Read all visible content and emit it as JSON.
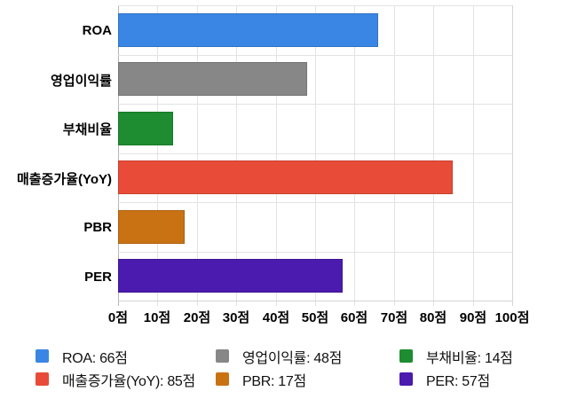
{
  "chart_data": {
    "type": "bar",
    "orientation": "horizontal",
    "title": "",
    "xlabel": "",
    "ylabel": "",
    "unit": "점",
    "categories": [
      "ROA",
      "영업이익률",
      "부채비율",
      "매출증가율(YoY)",
      "PBR",
      "PER"
    ],
    "values": [
      66,
      48,
      14,
      85,
      17,
      57
    ],
    "colors": [
      "#3A86E4",
      "#878787",
      "#1E8C30",
      "#E84B38",
      "#C97213",
      "#4B1AAE"
    ],
    "xlim": [
      0,
      100
    ],
    "x_tick_step": 10,
    "x_tick_labels": [
      "0점",
      "10점",
      "20점",
      "30점",
      "40점",
      "50점",
      "60점",
      "70점",
      "80점",
      "90점",
      "100점"
    ],
    "grid": true,
    "legend_position": "bottom",
    "legend": [
      {
        "label": "ROA: 66점",
        "color": "#3A86E4"
      },
      {
        "label": "영업이익률: 48점",
        "color": "#878787"
      },
      {
        "label": "부채비율: 14점",
        "color": "#1E8C30"
      },
      {
        "label": "매출증가율(YoY): 85점",
        "color": "#E84B38"
      },
      {
        "label": "PBR: 17점",
        "color": "#C97213"
      },
      {
        "label": "PER: 57점",
        "color": "#4B1AAE"
      }
    ]
  }
}
